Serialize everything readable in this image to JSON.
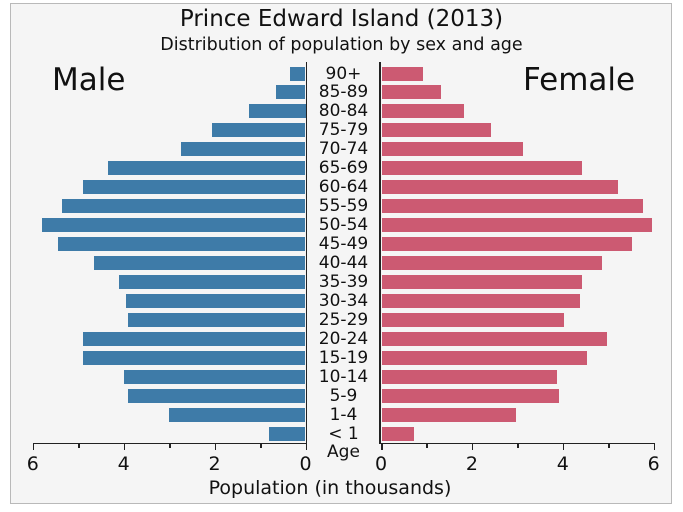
{
  "title": "Prince Edward Island (2013)",
  "subtitle": "Distribution of population by sex and age",
  "left_panel_label": "Male",
  "right_panel_label": "Female",
  "axis": {
    "xlabel": "Population (in thousands)",
    "center_axis_label": "Age",
    "major_ticks": [
      0,
      2,
      4,
      6
    ],
    "minor_ticks": [
      1,
      3,
      5
    ],
    "x_max": 6
  },
  "colors": {
    "male_bar": "#3e7ba8",
    "female_bar": "#cc5a72",
    "plot_background": "#f5f5f5",
    "frame_border": "#b9b9b9",
    "axis": "#222222",
    "text": "#111111"
  },
  "chart_data": {
    "type": "bar",
    "variant": "population-pyramid",
    "title": "Prince Edward Island (2013)",
    "subtitle": "Distribution of population by sex and age",
    "xlabel": "Population (in thousands)",
    "age_axis_label": "Age",
    "xlim": [
      0,
      6
    ],
    "grid": false,
    "categories": [
      "90+",
      "85-89",
      "80-84",
      "75-79",
      "70-74",
      "65-69",
      "60-64",
      "55-59",
      "50-54",
      "45-49",
      "40-44",
      "35-39",
      "30-34",
      "25-29",
      "20-24",
      "15-19",
      "10-14",
      "5-9",
      "1-4",
      "< 1"
    ],
    "series": [
      {
        "name": "Male",
        "side": "left",
        "color": "#3e7ba8",
        "values": [
          0.35,
          0.65,
          1.25,
          2.05,
          2.75,
          4.35,
          4.9,
          5.35,
          5.8,
          5.45,
          4.65,
          4.1,
          3.95,
          3.9,
          4.9,
          4.9,
          4.0,
          3.9,
          3.0,
          0.8
        ]
      },
      {
        "name": "Female",
        "side": "right",
        "color": "#cc5a72",
        "values": [
          0.9,
          1.3,
          1.8,
          2.4,
          3.1,
          4.4,
          5.2,
          5.75,
          5.95,
          5.5,
          4.85,
          4.4,
          4.35,
          4.0,
          4.95,
          4.5,
          3.85,
          3.9,
          2.95,
          0.7
        ]
      }
    ]
  }
}
